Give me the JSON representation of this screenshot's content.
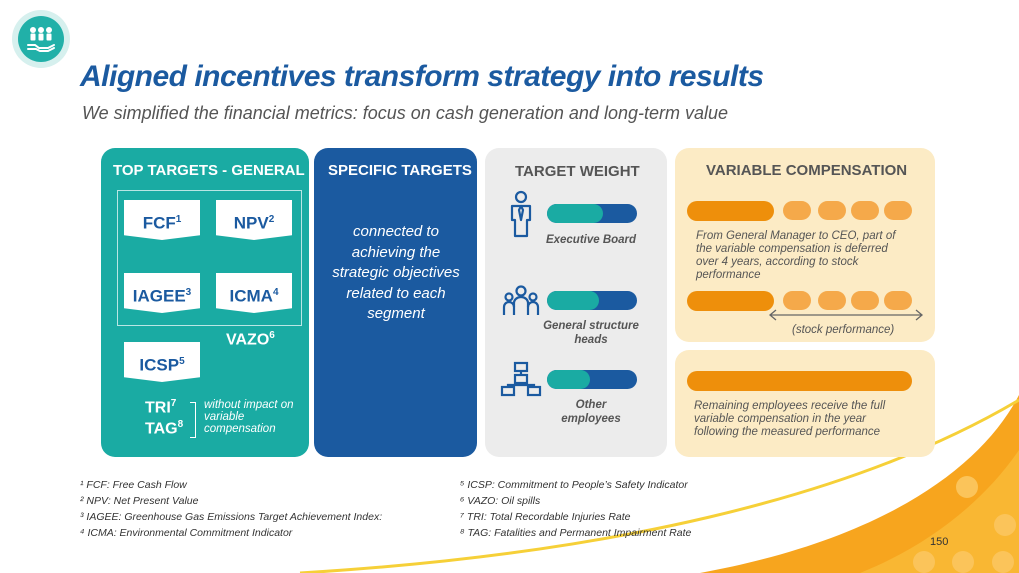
{
  "header": {
    "title": "Aligned incentives transform strategy into results",
    "subtitle": "We simplified the financial metrics: focus on cash generation and long-term value",
    "logo_icon": "people-hand-icon"
  },
  "general": {
    "heading": "TOP TARGETS - GENERAL",
    "fcf": "FCF",
    "fcf_sup": "1",
    "npv": "NPV",
    "npv_sup": "2",
    "iagee": "IAGEE",
    "iagee_sup": "3",
    "icma": "ICMA",
    "icma_sup": "4",
    "vazo": "VAZO",
    "vazo_sup": "6",
    "icsp": "ICSP",
    "icsp_sup": "5",
    "tri": "TRI",
    "tri_sup": "7",
    "tag": "TAG",
    "tag_sup": "8",
    "no_impact": "without impact on variable compensation"
  },
  "specific": {
    "heading": "SPECIFIC TARGETS",
    "text": "connected to achieving the strategic objectives related to each segment"
  },
  "weight": {
    "heading": "TARGET WEIGHT",
    "rows": [
      {
        "label": "Executive Board",
        "icon": "person-tie-icon",
        "general_share": 0.62
      },
      {
        "label": "General structure heads",
        "icon": "group-icon",
        "general_share": 0.58
      },
      {
        "label": "Other employees",
        "icon": "org-chart-icon",
        "general_share": 0.48
      }
    ]
  },
  "variable": {
    "heading": "VARIABLE COMPENSATION",
    "desc1": "From General Manager to CEO, part of the variable compensation is deferred over 4 years, according to stock performance",
    "stock_label": "(stock performance)",
    "desc2": "Remaining employees receive the full variable compensation in the year following the measured performance"
  },
  "footnotes": {
    "left": [
      "¹ FCF: Free Cash Flow",
      "² NPV: Net Present Value",
      "³ IAGEE:  Greenhouse Gas Emissions Target Achievement Index:",
      "⁴ ICMA: Environmental Commitment Indicator"
    ],
    "right": [
      "⁵ ICSP: Commitment to People’s Safety Indicator",
      "⁶ VAZO: Oil spills",
      "⁷  TRI: Total Recordable Injuries Rate",
      "⁸ TAG: Fatalities and Permanent Impairment Rate"
    ]
  },
  "page_number": "150",
  "colors": {
    "teal": "#1aaba3",
    "blue": "#1b5aa0",
    "orange": "#ee8f0b",
    "light_orange": "#f5a94a",
    "cream": "#fcebc5",
    "grey": "#ececec"
  }
}
